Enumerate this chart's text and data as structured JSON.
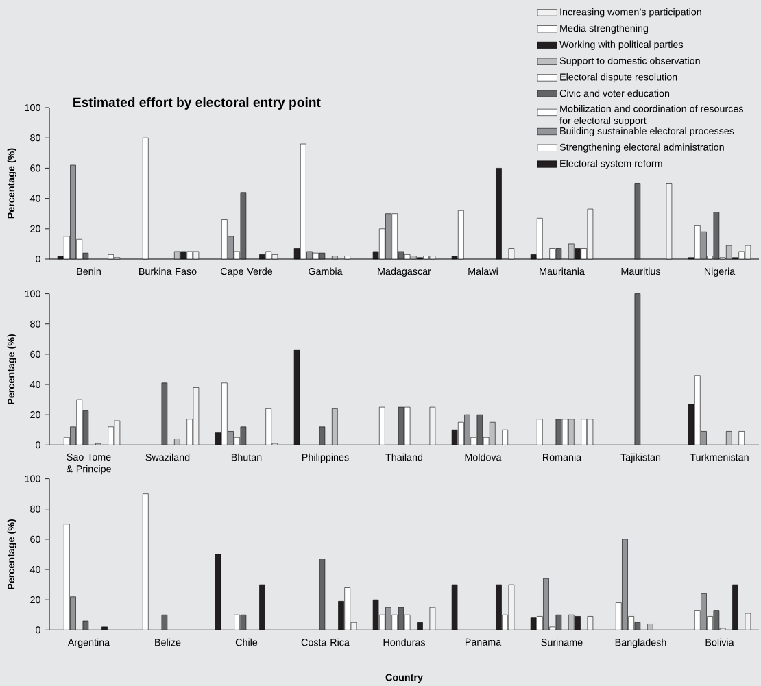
{
  "chart_data": [
    {
      "type": "bar",
      "title": "Estimated effort by electoral entry point",
      "ylabel": "Percentage (%)",
      "legend": "top right",
      "categories": [
        "Benin",
        "Burkina Faso",
        "Cape Verde",
        "Gambia",
        "Madagascar",
        "Malawi",
        "Mauritania",
        "Mauritius",
        "Nigeria"
      ],
      "ylim": [
        0,
        100
      ],
      "yticks": [
        0,
        20,
        40,
        60,
        80,
        100
      ],
      "series": [
        {
          "name": "Electoral system reform",
          "color": "#231f20",
          "values": [
            2,
            null,
            null,
            7,
            5,
            2,
            3,
            null,
            1
          ]
        },
        {
          "name": "Strengthening electoral administration",
          "color": "#ffffff",
          "values": [
            15,
            80,
            26,
            76,
            20,
            32,
            27,
            null,
            22
          ]
        },
        {
          "name": "Building sustainable electoral processes",
          "color": "#939598",
          "values": [
            62,
            null,
            15,
            5,
            30,
            null,
            null,
            null,
            18
          ]
        },
        {
          "name": "Mobilization and coordination of resources for electoral support",
          "color": "#ffffff",
          "values": [
            13,
            null,
            5,
            4,
            30,
            null,
            7,
            null,
            2
          ]
        },
        {
          "name": "Civic and voter education",
          "color": "#636466",
          "values": [
            4,
            null,
            44,
            4,
            5,
            null,
            7,
            50,
            31
          ]
        },
        {
          "name": "Electoral dispute resolution",
          "color": "#ffffff",
          "values": [
            null,
            null,
            null,
            null,
            3,
            null,
            null,
            null,
            1
          ]
        },
        {
          "name": "Support to domestic observation",
          "color": "#bcbec0",
          "values": [
            null,
            5,
            null,
            2,
            2,
            null,
            10,
            null,
            9
          ]
        },
        {
          "name": "Working with political parties",
          "color": "#231f20",
          "values": [
            null,
            5,
            3,
            null,
            1,
            60,
            7,
            null,
            1
          ]
        },
        {
          "name": "Media strengthening",
          "color": "#ffffff",
          "values": [
            3,
            5,
            5,
            2,
            2,
            null,
            7,
            null,
            5
          ]
        },
        {
          "name": "Increasing women’s participation",
          "color": "#f1f1f2",
          "values": [
            1,
            5,
            3,
            null,
            2,
            7,
            33,
            50,
            9
          ]
        }
      ]
    },
    {
      "type": "bar",
      "ylabel": "Percentage (%)",
      "categories": [
        "Sao Tome & Principe",
        "Swaziland",
        "Bhutan",
        "Philippines",
        "Thailand",
        "Moldova",
        "Romania",
        "Tajikistan",
        "Turkmenistan"
      ],
      "ylim": [
        0,
        100
      ],
      "yticks": [
        0,
        20,
        40,
        60,
        80,
        100
      ],
      "series": [
        {
          "color": "#231f20",
          "values": [
            null,
            null,
            8,
            63,
            null,
            10,
            null,
            null,
            27
          ]
        },
        {
          "color": "#ffffff",
          "values": [
            5,
            null,
            41,
            null,
            25,
            15,
            17,
            null,
            46
          ]
        },
        {
          "color": "#939598",
          "values": [
            12,
            null,
            9,
            null,
            null,
            20,
            null,
            null,
            9
          ]
        },
        {
          "color": "#ffffff",
          "values": [
            30,
            null,
            5,
            null,
            null,
            5,
            null,
            null,
            null
          ]
        },
        {
          "color": "#636466",
          "values": [
            23,
            41,
            12,
            12,
            25,
            20,
            17,
            100,
            null
          ]
        },
        {
          "color": "#ffffff",
          "values": [
            null,
            null,
            null,
            null,
            25,
            5,
            17,
            null,
            null
          ]
        },
        {
          "color": "#bcbec0",
          "values": [
            1,
            4,
            null,
            24,
            null,
            15,
            17,
            null,
            9
          ]
        },
        {
          "color": "#231f20",
          "values": [
            null,
            null,
            null,
            null,
            null,
            null,
            null,
            null,
            null
          ]
        },
        {
          "color": "#ffffff",
          "values": [
            12,
            17,
            24,
            null,
            null,
            10,
            17,
            null,
            9
          ]
        },
        {
          "color": "#f1f1f2",
          "values": [
            16,
            38,
            1,
            null,
            25,
            null,
            17,
            null,
            null
          ]
        }
      ]
    },
    {
      "type": "bar",
      "ylabel": "Percentage (%)",
      "xlabel": "Country",
      "categories": [
        "Argentina",
        "Belize",
        "Chile",
        "Costa Rica",
        "Honduras",
        "Panama",
        "Suriname",
        "Bangladesh",
        "Bolivia"
      ],
      "ylim": [
        0,
        100
      ],
      "yticks": [
        0,
        20,
        40,
        60,
        80,
        100
      ],
      "series": [
        {
          "color": "#231f20",
          "values": [
            null,
            null,
            50,
            null,
            20,
            30,
            8,
            null,
            null
          ]
        },
        {
          "color": "#ffffff",
          "values": [
            70,
            90,
            null,
            null,
            10,
            null,
            9,
            18,
            13
          ]
        },
        {
          "color": "#939598",
          "values": [
            22,
            null,
            null,
            null,
            15,
            null,
            34,
            60,
            24
          ]
        },
        {
          "color": "#ffffff",
          "values": [
            null,
            null,
            10,
            null,
            10,
            null,
            2,
            9,
            9
          ]
        },
        {
          "color": "#636466",
          "values": [
            6,
            10,
            10,
            47,
            15,
            null,
            10,
            5,
            13
          ]
        },
        {
          "color": "#ffffff",
          "values": [
            null,
            null,
            null,
            null,
            10,
            null,
            null,
            null,
            1
          ]
        },
        {
          "color": "#bcbec0",
          "values": [
            null,
            null,
            null,
            null,
            null,
            null,
            10,
            4,
            null
          ]
        },
        {
          "color": "#231f20",
          "values": [
            2,
            null,
            30,
            19,
            5,
            30,
            9,
            null,
            30
          ]
        },
        {
          "color": "#ffffff",
          "values": [
            null,
            null,
            null,
            28,
            null,
            10,
            null,
            null,
            null
          ]
        },
        {
          "color": "#f1f1f2",
          "values": [
            null,
            null,
            null,
            5,
            15,
            30,
            9,
            null,
            11
          ]
        }
      ]
    }
  ]
}
